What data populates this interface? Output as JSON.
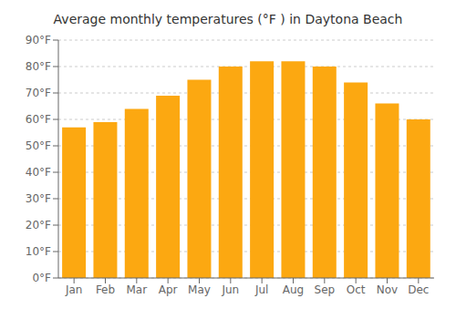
{
  "chart_data": {
    "type": "bar",
    "title": "Average monthly temperatures (°F ) in Daytona Beach",
    "categories": [
      "Jan",
      "Feb",
      "Mar",
      "Apr",
      "May",
      "Jun",
      "Jul",
      "Aug",
      "Sep",
      "Oct",
      "Nov",
      "Dec"
    ],
    "values": [
      57,
      59,
      64,
      69,
      75,
      80,
      82,
      82,
      80,
      74,
      66,
      60
    ],
    "color": "#FCA811",
    "ylim": [
      0,
      90
    ],
    "yticks": [
      {
        "value": 0,
        "label": "0°F"
      },
      {
        "value": 10,
        "label": "10°F"
      },
      {
        "value": 20,
        "label": "20°F"
      },
      {
        "value": 30,
        "label": "30°F"
      },
      {
        "value": 40,
        "label": "40°F"
      },
      {
        "value": 50,
        "label": "50°F"
      },
      {
        "value": 60,
        "label": "60°F"
      },
      {
        "value": 70,
        "label": "70°F"
      },
      {
        "value": 80,
        "label": "80°F"
      },
      {
        "value": 90,
        "label": "90°F"
      }
    ],
    "grid": true
  }
}
